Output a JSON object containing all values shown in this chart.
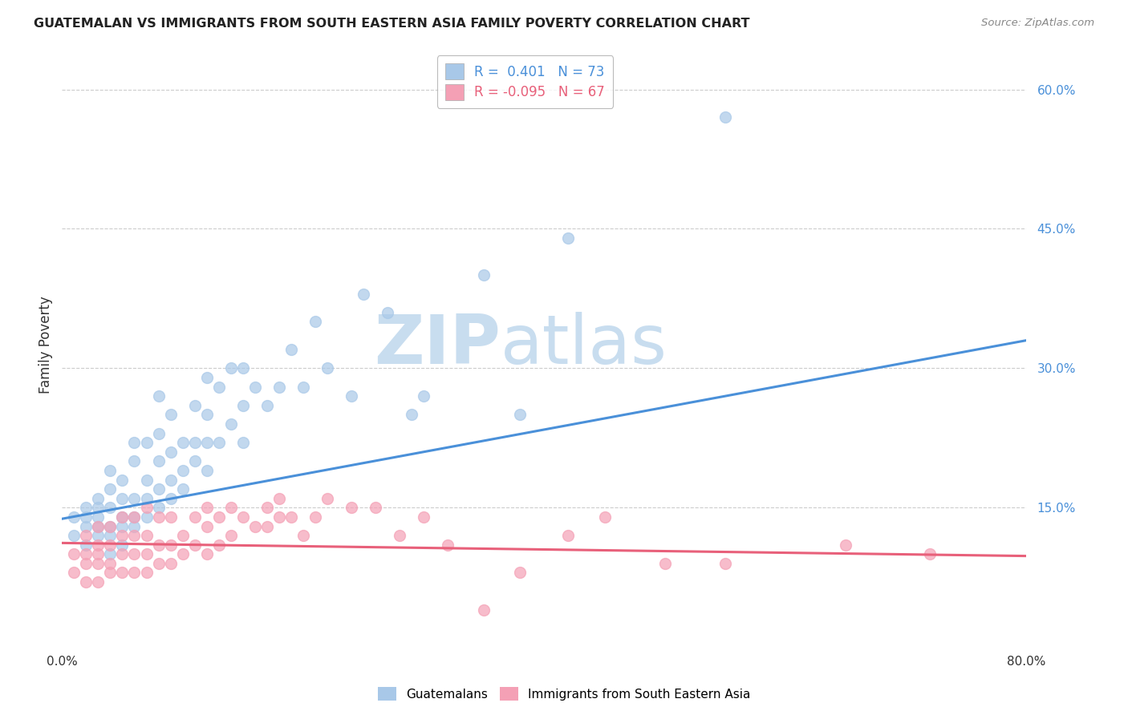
{
  "title": "GUATEMALAN VS IMMIGRANTS FROM SOUTH EASTERN ASIA FAMILY POVERTY CORRELATION CHART",
  "source": "Source: ZipAtlas.com",
  "ylabel": "Family Poverty",
  "x_min": 0.0,
  "x_max": 0.8,
  "y_min": 0.0,
  "y_max": 0.65,
  "x_ticks": [
    0.0,
    0.1,
    0.2,
    0.3,
    0.4,
    0.5,
    0.6,
    0.7,
    0.8
  ],
  "x_tick_labels": [
    "0.0%",
    "",
    "",
    "",
    "",
    "",
    "",
    "",
    "80.0%"
  ],
  "y_ticks_right": [
    0.15,
    0.3,
    0.45,
    0.6
  ],
  "y_tick_labels_right": [
    "15.0%",
    "30.0%",
    "45.0%",
    "60.0%"
  ],
  "blue_color": "#A8C8E8",
  "pink_color": "#F4A0B5",
  "blue_line_color": "#4A90D9",
  "pink_line_color": "#E8607A",
  "legend_R_blue": "R =  0.401",
  "legend_N_blue": "N = 73",
  "legend_R_pink": "R = -0.095",
  "legend_N_pink": "N = 67",
  "blue_trend_x": [
    0.0,
    0.8
  ],
  "blue_trend_y": [
    0.138,
    0.33
  ],
  "pink_trend_x": [
    0.0,
    0.8
  ],
  "pink_trend_y": [
    0.112,
    0.098
  ],
  "grid_color": "#CCCCCC",
  "background_color": "#FFFFFF",
  "watermark_color": "#DDEEFF",
  "blue_scatter_x": [
    0.01,
    0.01,
    0.02,
    0.02,
    0.02,
    0.02,
    0.03,
    0.03,
    0.03,
    0.03,
    0.03,
    0.04,
    0.04,
    0.04,
    0.04,
    0.04,
    0.04,
    0.05,
    0.05,
    0.05,
    0.05,
    0.05,
    0.06,
    0.06,
    0.06,
    0.06,
    0.06,
    0.07,
    0.07,
    0.07,
    0.07,
    0.08,
    0.08,
    0.08,
    0.08,
    0.08,
    0.09,
    0.09,
    0.09,
    0.09,
    0.1,
    0.1,
    0.1,
    0.11,
    0.11,
    0.11,
    0.12,
    0.12,
    0.12,
    0.12,
    0.13,
    0.13,
    0.14,
    0.14,
    0.15,
    0.15,
    0.15,
    0.16,
    0.17,
    0.18,
    0.19,
    0.2,
    0.21,
    0.22,
    0.24,
    0.25,
    0.27,
    0.29,
    0.3,
    0.35,
    0.38,
    0.42,
    0.55
  ],
  "blue_scatter_y": [
    0.12,
    0.14,
    0.11,
    0.13,
    0.14,
    0.15,
    0.12,
    0.13,
    0.14,
    0.15,
    0.16,
    0.1,
    0.12,
    0.13,
    0.15,
    0.17,
    0.19,
    0.11,
    0.13,
    0.14,
    0.16,
    0.18,
    0.13,
    0.14,
    0.16,
    0.2,
    0.22,
    0.14,
    0.16,
    0.18,
    0.22,
    0.15,
    0.17,
    0.2,
    0.23,
    0.27,
    0.16,
    0.18,
    0.21,
    0.25,
    0.17,
    0.19,
    0.22,
    0.2,
    0.22,
    0.26,
    0.19,
    0.22,
    0.25,
    0.29,
    0.22,
    0.28,
    0.24,
    0.3,
    0.22,
    0.26,
    0.3,
    0.28,
    0.26,
    0.28,
    0.32,
    0.28,
    0.35,
    0.3,
    0.27,
    0.38,
    0.36,
    0.25,
    0.27,
    0.4,
    0.25,
    0.44,
    0.57
  ],
  "pink_scatter_x": [
    0.01,
    0.01,
    0.02,
    0.02,
    0.02,
    0.02,
    0.03,
    0.03,
    0.03,
    0.03,
    0.03,
    0.04,
    0.04,
    0.04,
    0.04,
    0.05,
    0.05,
    0.05,
    0.05,
    0.06,
    0.06,
    0.06,
    0.06,
    0.07,
    0.07,
    0.07,
    0.07,
    0.08,
    0.08,
    0.08,
    0.09,
    0.09,
    0.09,
    0.1,
    0.1,
    0.11,
    0.11,
    0.12,
    0.12,
    0.12,
    0.13,
    0.13,
    0.14,
    0.14,
    0.15,
    0.16,
    0.17,
    0.17,
    0.18,
    0.18,
    0.19,
    0.2,
    0.21,
    0.22,
    0.24,
    0.26,
    0.28,
    0.3,
    0.32,
    0.35,
    0.38,
    0.42,
    0.45,
    0.5,
    0.55,
    0.65,
    0.72
  ],
  "pink_scatter_y": [
    0.08,
    0.1,
    0.07,
    0.09,
    0.1,
    0.12,
    0.07,
    0.09,
    0.1,
    0.11,
    0.13,
    0.08,
    0.09,
    0.11,
    0.13,
    0.08,
    0.1,
    0.12,
    0.14,
    0.08,
    0.1,
    0.12,
    0.14,
    0.08,
    0.1,
    0.12,
    0.15,
    0.09,
    0.11,
    0.14,
    0.09,
    0.11,
    0.14,
    0.1,
    0.12,
    0.11,
    0.14,
    0.1,
    0.13,
    0.15,
    0.11,
    0.14,
    0.12,
    0.15,
    0.14,
    0.13,
    0.15,
    0.13,
    0.14,
    0.16,
    0.14,
    0.12,
    0.14,
    0.16,
    0.15,
    0.15,
    0.12,
    0.14,
    0.11,
    0.04,
    0.08,
    0.12,
    0.14,
    0.09,
    0.09,
    0.11,
    0.1
  ]
}
